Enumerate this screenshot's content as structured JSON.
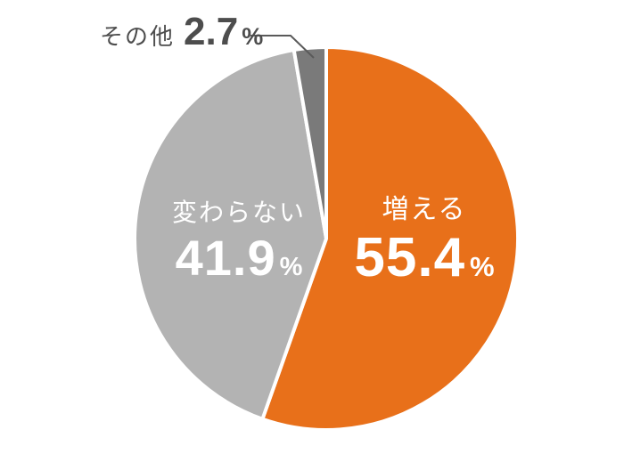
{
  "chart_data": {
    "type": "pie",
    "title": "",
    "categories": [
      "増える",
      "変わらない",
      "その他"
    ],
    "values": [
      55.4,
      41.9,
      2.7
    ],
    "unit": "%",
    "colors": [
      "#E8701A",
      "#B3B3B3",
      "#7A7A7A"
    ],
    "label_text_colors": [
      "#FFFFFF",
      "#FFFFFF",
      "#4D4D4D"
    ],
    "start_angle_deg": 0,
    "direction": "clockwise",
    "separator": {
      "color": "#FFFFFF",
      "width": 4
    },
    "legend": "none",
    "callout": {
      "category": "その他",
      "line_color": "#5A5A5A"
    }
  }
}
